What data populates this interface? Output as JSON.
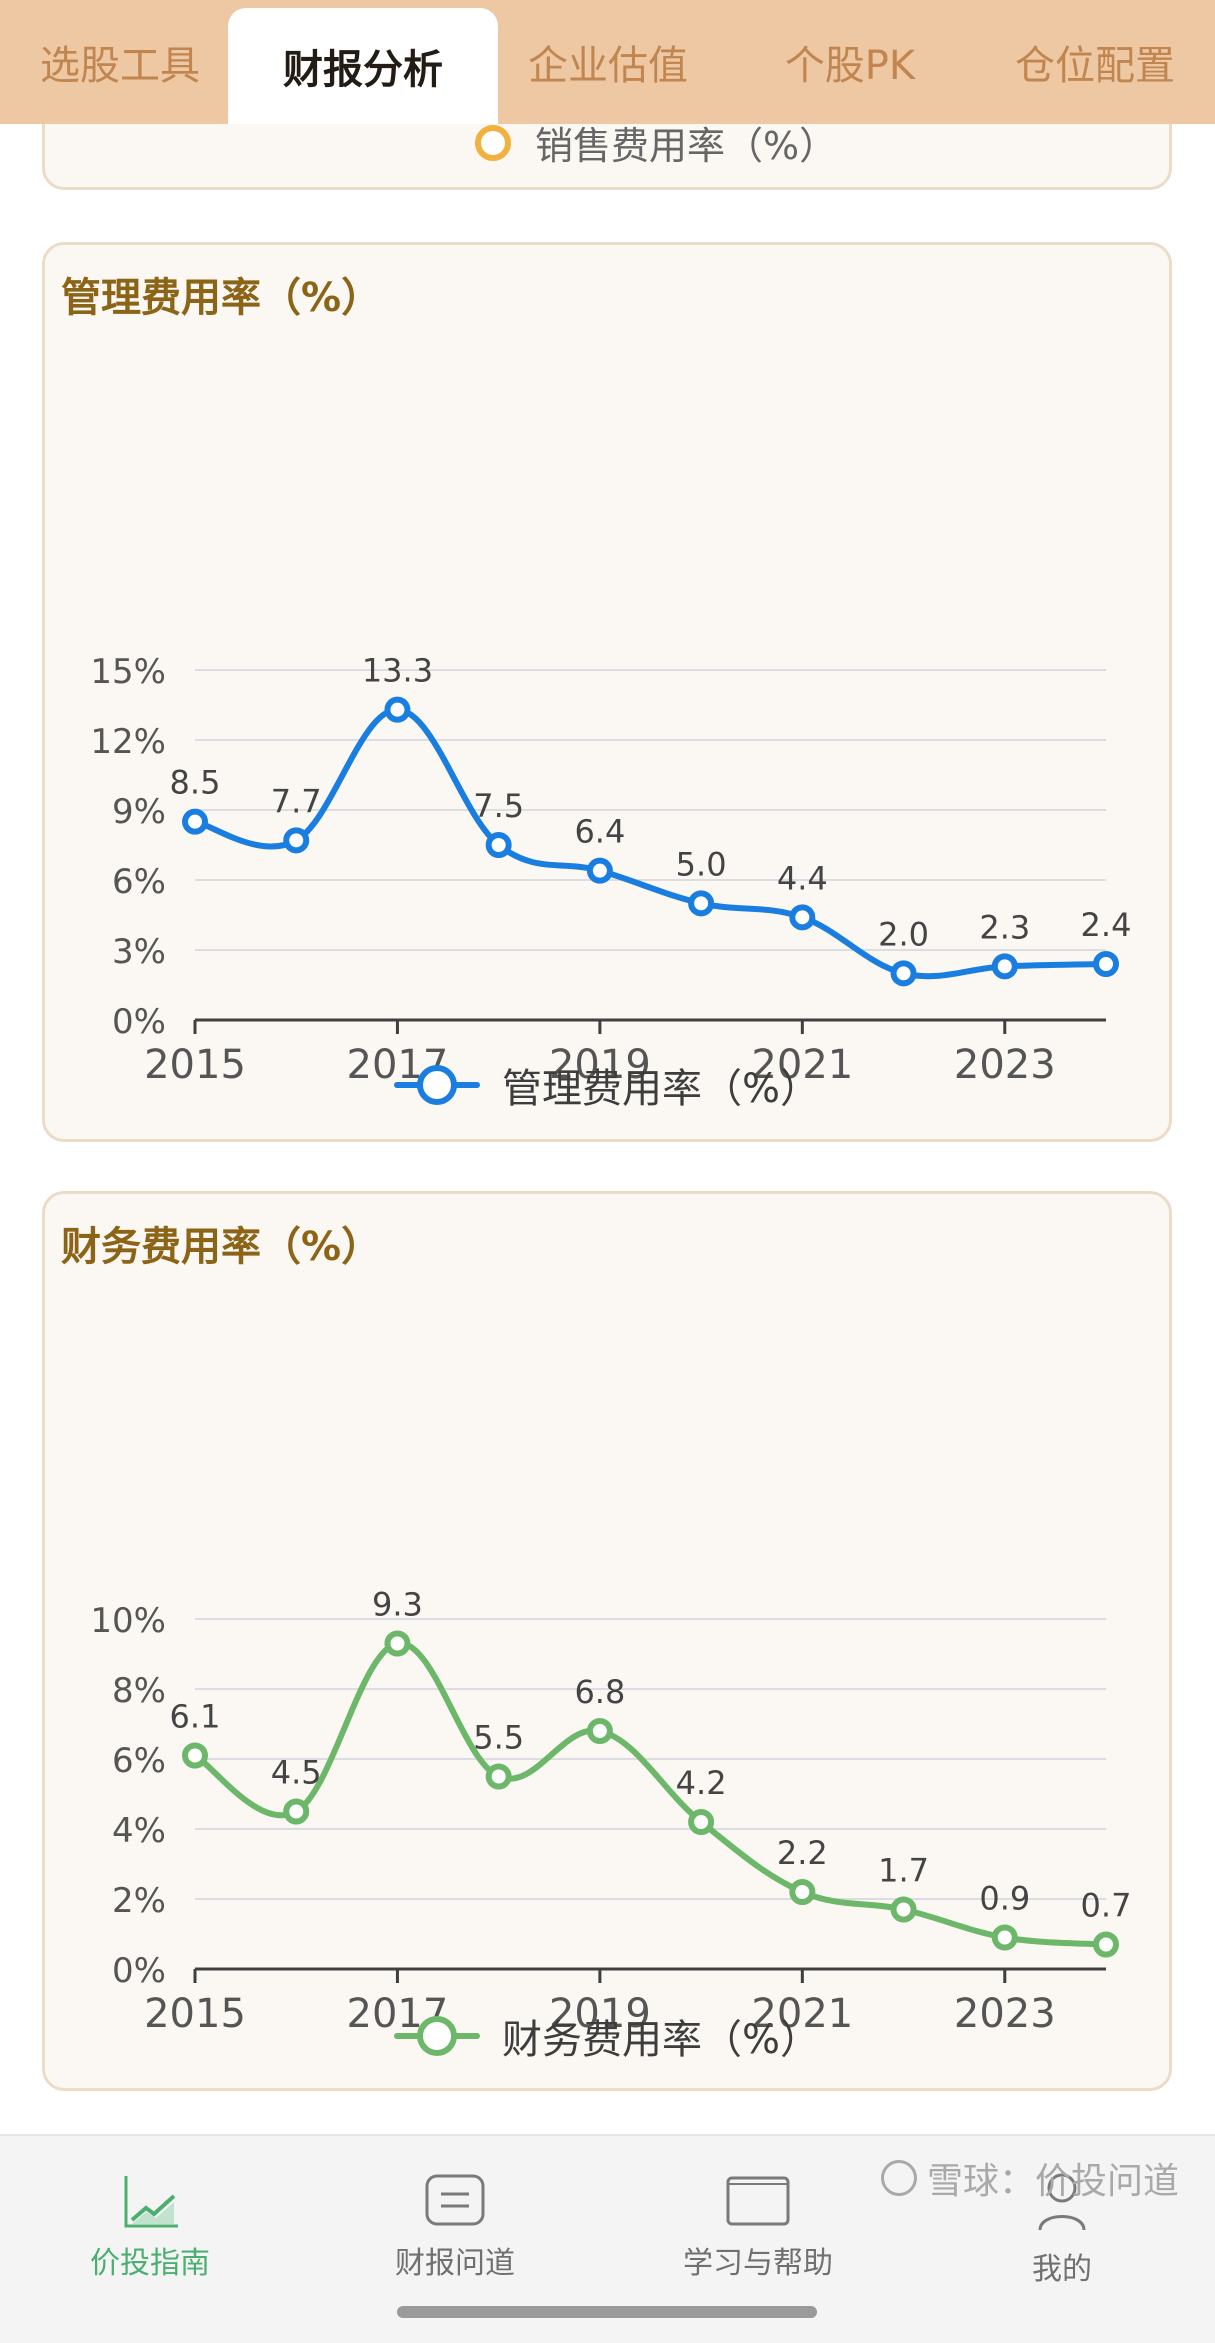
{
  "tabs": [
    {
      "label": "选股工具",
      "active": false
    },
    {
      "label": "财报分析",
      "active": true
    },
    {
      "label": "企业估值",
      "active": false
    },
    {
      "label": "个股PK",
      "active": false
    },
    {
      "label": "仓位配置",
      "active": false
    }
  ],
  "prev_card": {
    "legend_label": "销售费用率（%）"
  },
  "chart_data": [
    {
      "type": "line",
      "title": "管理费用率（%）",
      "x": [
        2015,
        2016,
        2017,
        2018,
        2019,
        2020,
        2021,
        2022,
        2023,
        2024
      ],
      "x_tick_labels": [
        "2015",
        "2017",
        "2019",
        "2021",
        "2023"
      ],
      "y_tick_labels": [
        "15%",
        "12%",
        "9%",
        "6%",
        "3%",
        "0%"
      ],
      "ylim": [
        0,
        15
      ],
      "series": [
        {
          "name": "管理费用率（%）",
          "values": [
            8.5,
            7.7,
            13.3,
            7.5,
            6.4,
            5.0,
            4.4,
            2.0,
            2.3,
            2.4
          ],
          "labels": [
            "8.5",
            "7.7",
            "13.3",
            "7.5",
            "6.4",
            "5.0",
            "4.4",
            "2.0",
            "2.3",
            "2.4"
          ],
          "color": "#1a7ee0"
        }
      ],
      "legend": "bottom-center",
      "grid": true
    },
    {
      "type": "line",
      "title": "财务费用率（%）",
      "x": [
        2015,
        2016,
        2017,
        2018,
        2019,
        2020,
        2021,
        2022,
        2023,
        2024
      ],
      "x_tick_labels": [
        "2015",
        "2017",
        "2019",
        "2021",
        "2023"
      ],
      "y_tick_labels": [
        "10%",
        "8%",
        "6%",
        "4%",
        "2%",
        "0%"
      ],
      "ylim": [
        0,
        10
      ],
      "series": [
        {
          "name": "财务费用率（%）",
          "values": [
            6.1,
            4.5,
            9.3,
            5.5,
            6.8,
            4.2,
            2.2,
            1.7,
            0.9,
            0.7
          ],
          "labels": [
            "6.1",
            "4.5",
            "9.3",
            "5.5",
            "6.8",
            "4.2",
            "2.2",
            "1.7",
            "0.9",
            "0.7"
          ],
          "color": "#6cb76a"
        }
      ],
      "legend": "bottom-center",
      "grid": true
    }
  ],
  "bottom_nav": [
    {
      "label": "价投指南",
      "icon": "chart-trend-icon",
      "active": true
    },
    {
      "label": "财报问道",
      "icon": "document-icon",
      "active": false
    },
    {
      "label": "学习与帮助",
      "icon": "book-icon",
      "active": false
    },
    {
      "label": "我的",
      "icon": "user-icon",
      "active": false
    }
  ],
  "watermark": {
    "text": "雪球：价投问道"
  },
  "colors": {
    "accent": "#4caf72",
    "topbar": "#edc8a3",
    "title": "#8c6417"
  }
}
